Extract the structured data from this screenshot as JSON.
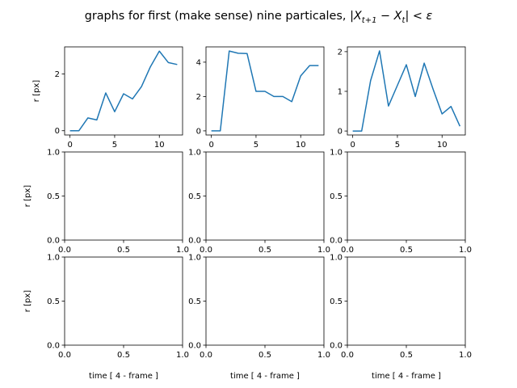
{
  "figure": {
    "title_text": "graphs for first (make sense) nine particales, ",
    "title_formula": "|X_{t+1} − X_t| < ε",
    "line_color": "#1f77b4"
  },
  "chart_data": [
    {
      "type": "line",
      "row": 0,
      "col": 0,
      "x": [
        0,
        1,
        2,
        3,
        4,
        5,
        6,
        7,
        8,
        9,
        10,
        11,
        12
      ],
      "values": [
        0.0,
        0.0,
        0.45,
        0.38,
        1.33,
        0.67,
        1.3,
        1.12,
        1.55,
        2.25,
        2.8,
        2.4,
        2.33
      ],
      "xlim": [
        -0.6,
        12.6
      ],
      "ylim": [
        -0.15,
        2.95
      ],
      "xticks": [
        0,
        5,
        10
      ],
      "yticks": [
        0,
        2
      ],
      "ylabel": "r [px]",
      "xlabel": ""
    },
    {
      "type": "line",
      "row": 0,
      "col": 1,
      "x": [
        0,
        1,
        2,
        3,
        4,
        5,
        6,
        7,
        8,
        9,
        10,
        11,
        12
      ],
      "values": [
        0.0,
        0.0,
        4.65,
        4.52,
        4.5,
        2.3,
        2.3,
        2.0,
        2.0,
        1.7,
        3.2,
        3.8,
        3.8
      ],
      "xlim": [
        -0.6,
        12.6
      ],
      "ylim": [
        -0.24,
        4.89
      ],
      "xticks": [
        0,
        5,
        10
      ],
      "yticks": [
        0,
        2,
        4
      ],
      "ylabel": "",
      "xlabel": ""
    },
    {
      "type": "line",
      "row": 0,
      "col": 2,
      "x": [
        0,
        1,
        2,
        3,
        4,
        5,
        6,
        7,
        8,
        9,
        10,
        11,
        12
      ],
      "values": [
        0.0,
        0.0,
        1.27,
        2.02,
        0.63,
        1.15,
        1.67,
        0.87,
        1.71,
        1.05,
        0.43,
        0.62,
        0.12
      ],
      "xlim": [
        -0.6,
        12.6
      ],
      "ylim": [
        -0.1,
        2.12
      ],
      "xticks": [
        0,
        5,
        10
      ],
      "yticks": [
        0,
        1,
        2
      ],
      "ylabel": "",
      "xlabel": ""
    },
    {
      "type": "line",
      "row": 1,
      "col": 0,
      "x": [],
      "values": [],
      "xlim": [
        0,
        1
      ],
      "ylim": [
        0,
        1
      ],
      "xticks": [
        0.0,
        0.5,
        1.0
      ],
      "yticks": [
        0.0,
        0.5,
        1.0
      ],
      "ylabel": "r [px]",
      "xlabel": ""
    },
    {
      "type": "line",
      "row": 1,
      "col": 1,
      "x": [],
      "values": [],
      "xlim": [
        0,
        1
      ],
      "ylim": [
        0,
        1
      ],
      "xticks": [
        0.0,
        0.5,
        1.0
      ],
      "yticks": [
        0.0,
        0.5,
        1.0
      ],
      "ylabel": "",
      "xlabel": ""
    },
    {
      "type": "line",
      "row": 1,
      "col": 2,
      "x": [],
      "values": [],
      "xlim": [
        0,
        1
      ],
      "ylim": [
        0,
        1
      ],
      "xticks": [
        0.0,
        0.5,
        1.0
      ],
      "yticks": [
        0.0,
        0.5,
        1.0
      ],
      "ylabel": "",
      "xlabel": ""
    },
    {
      "type": "line",
      "row": 2,
      "col": 0,
      "x": [],
      "values": [],
      "xlim": [
        0,
        1
      ],
      "ylim": [
        0,
        1
      ],
      "xticks": [
        0.0,
        0.5,
        1.0
      ],
      "yticks": [
        0.0,
        0.5,
        1.0
      ],
      "ylabel": "r [px]",
      "xlabel": "time [ 4 - frame ]"
    },
    {
      "type": "line",
      "row": 2,
      "col": 1,
      "x": [],
      "values": [],
      "xlim": [
        0,
        1
      ],
      "ylim": [
        0,
        1
      ],
      "xticks": [
        0.0,
        0.5,
        1.0
      ],
      "yticks": [
        0.0,
        0.5,
        1.0
      ],
      "ylabel": "",
      "xlabel": "time [ 4 - frame ]"
    },
    {
      "type": "line",
      "row": 2,
      "col": 2,
      "x": [],
      "values": [],
      "xlim": [
        0,
        1
      ],
      "ylim": [
        0,
        1
      ],
      "xticks": [
        0.0,
        0.5,
        1.0
      ],
      "yticks": [
        0.0,
        0.5,
        1.0
      ],
      "ylabel": "",
      "xlabel": "time [ 4 - frame ]"
    }
  ]
}
